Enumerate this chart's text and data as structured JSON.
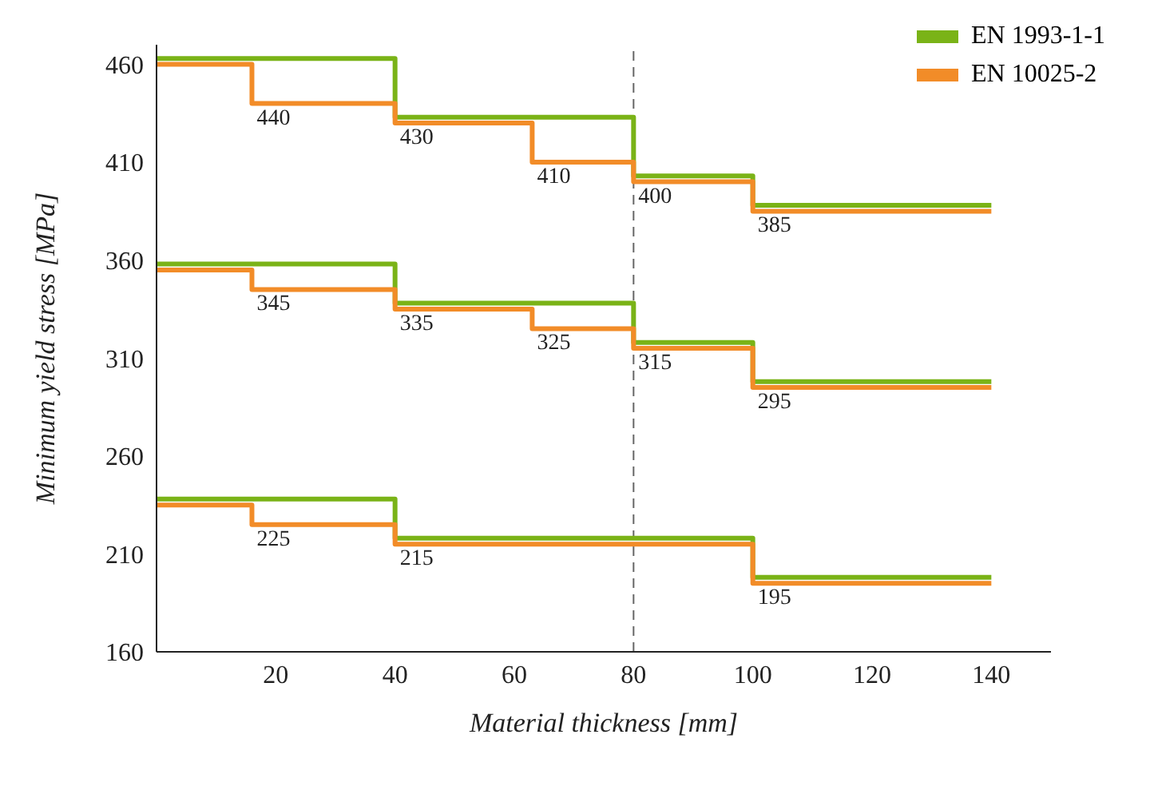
{
  "chart_data": {
    "type": "step",
    "xlabel": "Material thickness [mm]",
    "ylabel": "Minimum yield stress [MPa]",
    "xlim": [
      0,
      150
    ],
    "xticks": [
      20,
      40,
      60,
      80,
      100,
      120,
      140
    ],
    "ylim": [
      160,
      470
    ],
    "yticks": [
      160,
      210,
      260,
      310,
      360,
      410,
      460
    ],
    "legend": "top right",
    "marker": "none",
    "line_style": "solid",
    "ref_lines": [
      {
        "axis": "x",
        "value": 80,
        "color": "#666666",
        "line_style": "dashed"
      }
    ],
    "series": [
      {
        "name": "EN 1993-1-1",
        "color": "#7ab317",
        "x": [
          0,
          40,
          80,
          100,
          140
        ],
        "values": [
          463,
          433,
          403,
          388,
          388
        ]
      },
      {
        "color": "#7ab317",
        "x": [
          0,
          40,
          80,
          100,
          140
        ],
        "values": [
          358,
          338,
          318,
          298,
          298
        ]
      },
      {
        "color": "#7ab317",
        "x": [
          0,
          40,
          100,
          140
        ],
        "values": [
          238,
          218,
          198,
          198
        ]
      },
      {
        "name": "EN 10025-2",
        "color": "#f28c28",
        "x": [
          0,
          16,
          40,
          63,
          80,
          100,
          140
        ],
        "values": [
          460,
          440,
          430,
          410,
          400,
          385,
          385
        ],
        "value_labels": [
          null,
          "440",
          "430",
          "410",
          "400",
          "385",
          null
        ]
      },
      {
        "color": "#f28c28",
        "x": [
          0,
          16,
          40,
          63,
          80,
          100,
          140
        ],
        "values": [
          355,
          345,
          335,
          325,
          315,
          295,
          295
        ],
        "value_labels": [
          null,
          "345",
          "335",
          "325",
          "315",
          "295",
          null
        ]
      },
      {
        "color": "#f28c28",
        "x": [
          0,
          16,
          40,
          100,
          140
        ],
        "values": [
          235,
          225,
          215,
          195,
          195
        ],
        "value_labels": [
          null,
          "225",
          "215",
          "195",
          null
        ]
      }
    ]
  }
}
